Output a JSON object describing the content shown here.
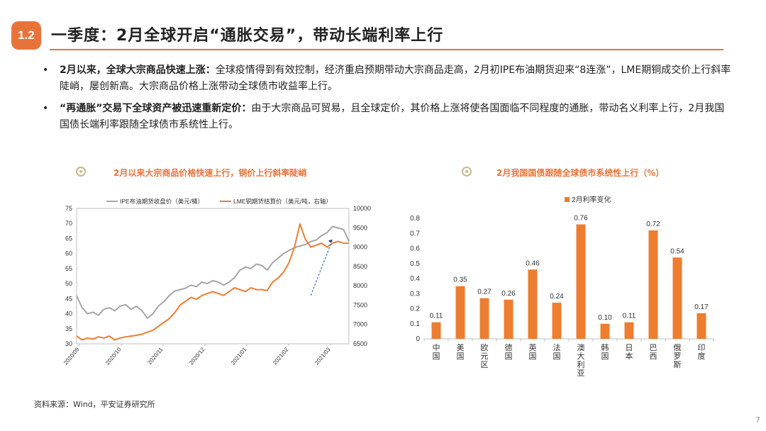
{
  "header": {
    "section_number": "1.2",
    "title": "一季度：2月全球开启“通胀交易”，带动长端利率上行"
  },
  "bullets": [
    {
      "bold": "2月以来，全球大宗商品快速上涨：",
      "text": "全球疫情得到有效控制，经济重启预期带动大宗商品走高，2月初IPE布油期货迎来“8连涨”，LME期铜成交价上行斜率陡峭，屡创新高。大宗商品价格上涨带动全球债市收益率上行。"
    },
    {
      "bold": "“再通胀”交易下全球资产被迅速重新定价：",
      "text": "由于大宗商品可贸易，且全球定价，其价格上涨将使各国面临不同程度的通胀，带动名义利率上行，2月我国国债长端利率跟随全球债市系统性上行。"
    }
  ],
  "chart_data": [
    {
      "type": "line",
      "title": "2月以来大宗商品价格快速上行，铜价上行斜率陡峭",
      "x_ticks": [
        "2020/09",
        "2020/10",
        "2020/11",
        "2020/12",
        "2021/01",
        "2021/02",
        "2021/03"
      ],
      "ylim_left": [
        30,
        75
      ],
      "y_ticks_left": [
        30,
        35,
        40,
        45,
        50,
        55,
        60,
        65,
        70,
        75
      ],
      "ylim_right": [
        6500,
        10000
      ],
      "y_ticks_right": [
        6500,
        7000,
        7500,
        8000,
        8500,
        9000,
        9500,
        10000
      ],
      "legend_position": "top",
      "grid": false,
      "series": [
        {
          "name": "IPE布油期货收盘价（美元/桶）",
          "axis": "left",
          "color": "#a6a6a6",
          "x": [
            0,
            0.02,
            0.04,
            0.06,
            0.08,
            0.1,
            0.12,
            0.14,
            0.16,
            0.18,
            0.2,
            0.22,
            0.24,
            0.26,
            0.28,
            0.3,
            0.32,
            0.34,
            0.36,
            0.38,
            0.4,
            0.42,
            0.44,
            0.46,
            0.48,
            0.5,
            0.52,
            0.54,
            0.56,
            0.58,
            0.6,
            0.62,
            0.64,
            0.66,
            0.68,
            0.7,
            0.72,
            0.74,
            0.76,
            0.78,
            0.8,
            0.82,
            0.84,
            0.86,
            0.88,
            0.9,
            0.92,
            0.94,
            0.96,
            0.98,
            1.0
          ],
          "values": [
            46,
            42,
            40,
            40.5,
            39.5,
            41.5,
            42,
            41,
            42.5,
            43,
            41.5,
            42.5,
            41,
            38.5,
            40,
            42.5,
            44,
            46,
            47.5,
            48,
            48.5,
            49.5,
            49,
            50.5,
            50,
            51,
            50.5,
            49.5,
            50.5,
            52,
            54.5,
            55.5,
            55,
            56.5,
            56,
            54.5,
            57,
            58.5,
            60,
            61,
            62,
            62.5,
            63,
            64,
            64.5,
            66,
            67,
            69,
            68.5,
            68,
            64
          ]
        },
        {
          "name": "LME铜期货结算价（美元/吨，右轴）",
          "axis": "right",
          "color": "#ed7d31",
          "x": [
            0,
            0.02,
            0.04,
            0.06,
            0.08,
            0.1,
            0.12,
            0.14,
            0.16,
            0.18,
            0.2,
            0.22,
            0.24,
            0.26,
            0.28,
            0.3,
            0.32,
            0.34,
            0.36,
            0.38,
            0.4,
            0.42,
            0.44,
            0.46,
            0.48,
            0.5,
            0.52,
            0.54,
            0.56,
            0.58,
            0.6,
            0.62,
            0.64,
            0.66,
            0.68,
            0.7,
            0.72,
            0.74,
            0.76,
            0.78,
            0.8,
            0.82,
            0.84,
            0.86,
            0.88,
            0.9,
            0.92,
            0.94,
            0.96,
            0.98,
            1.0
          ],
          "values": [
            6700,
            6600,
            6650,
            6620,
            6680,
            6650,
            6700,
            6600,
            6650,
            6680,
            6700,
            6720,
            6750,
            6800,
            6850,
            6950,
            7050,
            7150,
            7300,
            7500,
            7600,
            7700,
            7650,
            7750,
            7800,
            7850,
            7800,
            7750,
            7850,
            7950,
            7900,
            7850,
            7950,
            7900,
            7900,
            7880,
            8100,
            8200,
            8350,
            8600,
            9000,
            9600,
            9200,
            9000,
            9050,
            9100,
            9000,
            9100,
            9150,
            9100,
            9100
          ]
        }
      ]
    },
    {
      "type": "bar",
      "title": "2月我国国债跟随全球债市系统性上行（%）",
      "legend": [
        "2月利率变化"
      ],
      "legend_position": "top",
      "color": "#ed7d31",
      "categories": [
        "中国",
        "美国",
        "欧元区",
        "德国",
        "英国",
        "法国",
        "澳大利亚",
        "韩国",
        "日本",
        "巴西",
        "俄罗斯",
        "印度"
      ],
      "values": [
        0.11,
        0.35,
        0.27,
        0.26,
        0.46,
        0.24,
        0.76,
        0.1,
        0.11,
        0.72,
        0.54,
        0.17
      ],
      "value_labels": [
        "0.11",
        "0.35",
        "0.27",
        "0.26",
        "0.46",
        "0.24",
        "0.76",
        "0.10",
        "0.11",
        "0.72",
        "0.54",
        "0.17"
      ],
      "ylim": [
        0,
        0.8
      ],
      "y_ticks": [
        "0",
        "0.1",
        "0.2",
        "0.3",
        "0.4",
        "0.5",
        "0.6",
        "0.7",
        "0.8"
      ],
      "grid": false
    }
  ],
  "footer": {
    "source": "资料来源：Wind，平安证券研究所",
    "page_number": "7"
  }
}
